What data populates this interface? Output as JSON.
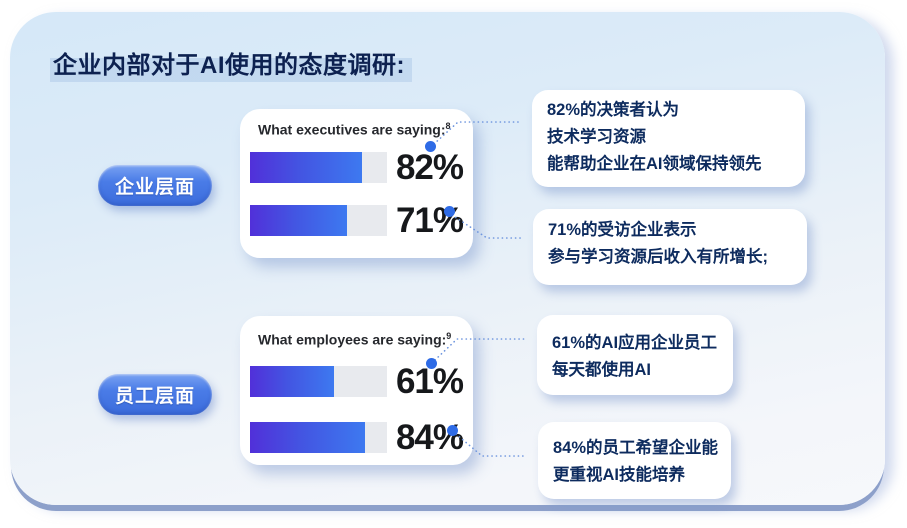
{
  "page": {
    "title": "企业内部对于AI使用的态度调研:"
  },
  "groups": [
    {
      "pill": "企业层面",
      "card": {
        "heading": "What executives are saying:",
        "footnote": "8"
      },
      "bars": [
        {
          "percent": 82,
          "label": "82%"
        },
        {
          "percent": 71,
          "label": "71%"
        }
      ],
      "callouts": [
        {
          "lines": [
            "82%的决策者认为",
            "技术学习资源",
            "能帮助企业在AI领域保持领先"
          ]
        },
        {
          "lines": [
            "71%的受访企业表示",
            "参与学习资源后收入有所增长;"
          ]
        }
      ]
    },
    {
      "pill": "员工层面",
      "card": {
        "heading": "What employees are saying:",
        "footnote": "9"
      },
      "bars": [
        {
          "percent": 61,
          "label": "61%"
        },
        {
          "percent": 84,
          "label": "84%"
        }
      ],
      "callouts": [
        {
          "lines": [
            "61%的AI应用企业员工",
            "每天都使用AI"
          ]
        },
        {
          "lines": [
            "84%的员工希望企业能",
            "更重视AI技能培养"
          ]
        }
      ]
    }
  ],
  "colors": {
    "panel_top": "#d5e8f8",
    "panel_bottom": "#f6f8fb",
    "panel_edge": "#8da0ca",
    "title_text": "#0d2150",
    "pill_blue": "#4a7ce7",
    "bar_gradient_start": "#5130d9",
    "bar_gradient_end": "#3d79f0",
    "bar_track": "#e8eaee",
    "percent_text": "#16181b",
    "callout_text": "#0d2b5e",
    "connector_dot": "#2e6be6",
    "connector_line": "#6e95de"
  },
  "chart_data": [
    {
      "type": "bar",
      "title": "What executives are saying:",
      "footnote_marker": "8",
      "categories": [
        "82%的决策者认为技术学习资源能帮助企业在AI领域保持领先",
        "71%的受访企业表示参与学习资源后收入有所增长"
      ],
      "values": [
        82,
        71
      ],
      "value_labels": [
        "82%",
        "71%"
      ],
      "xlim": [
        0,
        100
      ],
      "orientation": "horizontal",
      "grid": false,
      "legend": false
    },
    {
      "type": "bar",
      "title": "What employees are saying:",
      "footnote_marker": "9",
      "categories": [
        "61%的AI应用企业员工每天都使用AI",
        "84%的员工希望企业能更重视AI技能培养"
      ],
      "values": [
        61,
        84
      ],
      "value_labels": [
        "61%",
        "84%"
      ],
      "xlim": [
        0,
        100
      ],
      "orientation": "horizontal",
      "grid": false,
      "legend": false
    }
  ]
}
